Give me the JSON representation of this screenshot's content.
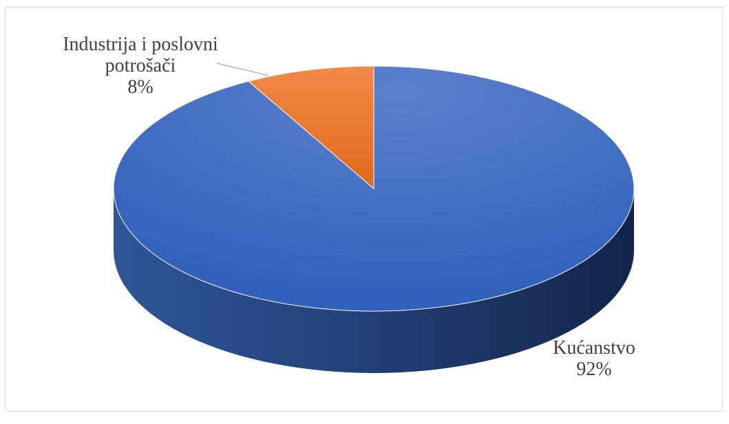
{
  "chart_data": {
    "type": "pie",
    "style": "3d",
    "title": "",
    "slices": [
      {
        "name": "Kućanstvo",
        "value": 92,
        "label_lines": [
          "Kućanstvo",
          "92%"
        ],
        "color": "#4472c4"
      },
      {
        "name": "Industrija i poslovni potrošači",
        "value": 8,
        "label_lines": [
          "Industrija i poslovni",
          "potrošači",
          "8%"
        ],
        "color": "#ed7d31"
      }
    ],
    "legend": "none"
  }
}
